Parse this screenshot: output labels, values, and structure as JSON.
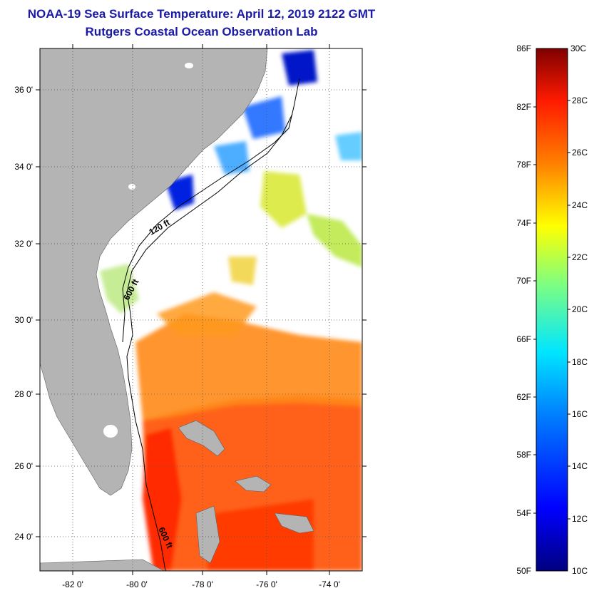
{
  "title": {
    "line1": "NOAA-19 Sea Surface Temperature:  April 12, 2019 2122 GMT",
    "line2": "Rutgers Coastal Ocean Observation Lab"
  },
  "map": {
    "lat_labels": [
      "36 0'",
      "34 0'",
      "32 0'",
      "30 0'",
      "28 0'",
      "26 0'",
      "24 0'"
    ],
    "lon_labels": [
      "-82 0'",
      "-80 0'",
      "-78 0'",
      "-76 0'",
      "-74 0'"
    ],
    "contour_labels": [
      "120 ft",
      "600 ft",
      "600 ft"
    ]
  },
  "colorbar": {
    "fahrenheit": [
      "86F",
      "82F",
      "78F",
      "74F",
      "70F",
      "66F",
      "62F",
      "58F",
      "54F",
      "50F"
    ],
    "celsius": [
      "30C",
      "28C",
      "26C",
      "24C",
      "22C",
      "20C",
      "18C",
      "16C",
      "14C",
      "12C",
      "10C"
    ]
  },
  "colors": {
    "title": "#1a1aa8",
    "land": "#b4b4b4"
  }
}
